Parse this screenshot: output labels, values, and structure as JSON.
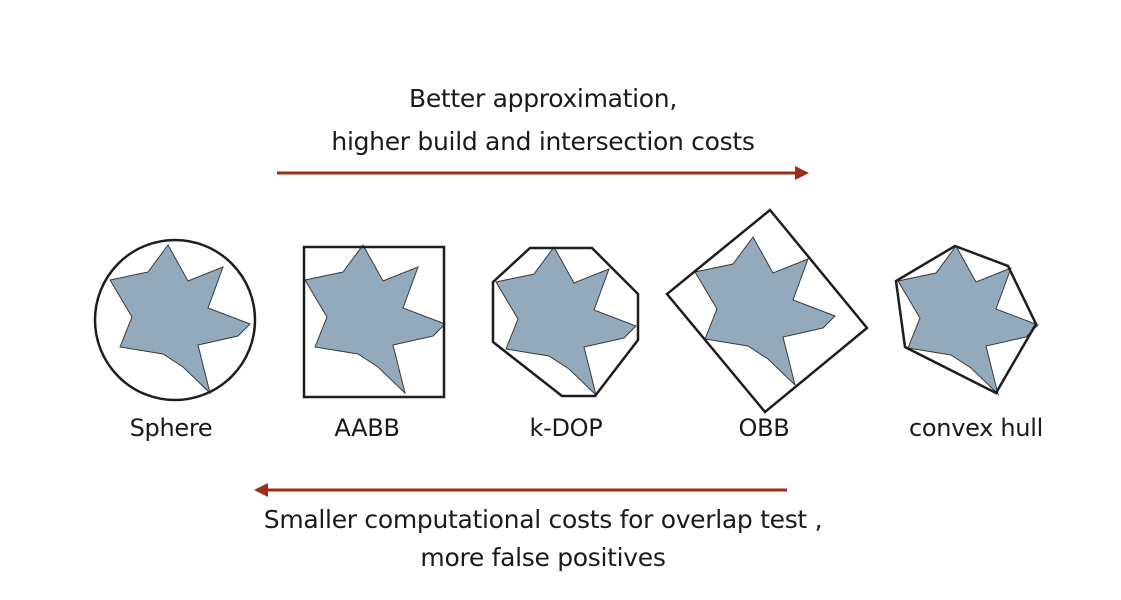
{
  "top_caption": {
    "line1": "Better approximation,",
    "line2": "higher build and intersection costs"
  },
  "bottom_caption": {
    "line1": "Smaller computational costs for overlap test ,",
    "line2": "more false positives"
  },
  "volumes": [
    {
      "label": "Sphere"
    },
    {
      "label": "AABB"
    },
    {
      "label": "k-DOP"
    },
    {
      "label": "OBB"
    },
    {
      "label": "convex hull"
    }
  ],
  "colors": {
    "arrow": "#9b2d1a",
    "shape_fill": "#93aabd",
    "outline": "#1e1e1e"
  },
  "icons": {
    "arrow_right": "arrow-right-icon",
    "arrow_left": "arrow-left-icon"
  }
}
